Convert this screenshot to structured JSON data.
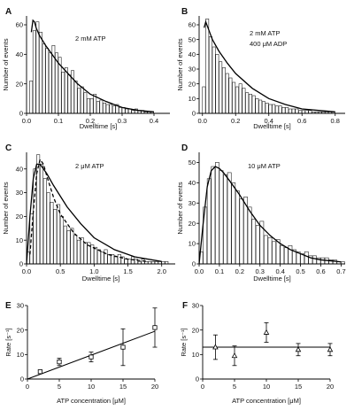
{
  "chart_data": [
    {
      "panel": "A",
      "type": "bar",
      "annotations": [
        "2 mM ATP"
      ],
      "xlabel": "Dwelltime [s]",
      "ylabel": "Number of events",
      "xlim": [
        0,
        0.45
      ],
      "ylim": [
        0,
        66
      ],
      "xticks": [
        "0.0",
        "0.1",
        "0.2",
        "0.3",
        "0.4"
      ],
      "yticks": [
        "0",
        "20",
        "40",
        "60"
      ],
      "bins": {
        "start": 0.01,
        "width": 0.01,
        "values": [
          22,
          56,
          62,
          55,
          47,
          44,
          41,
          46,
          41,
          38,
          28,
          31,
          26,
          29,
          22,
          17,
          18,
          14,
          10,
          10,
          13,
          8,
          9,
          7,
          6,
          6,
          5,
          6,
          4,
          4,
          3,
          3,
          2,
          3,
          2,
          2,
          1,
          1,
          1
        ]
      },
      "fit": [
        {
          "style": "solid",
          "x": [
            0.015,
            0.02,
            0.025,
            0.03,
            0.04,
            0.06,
            0.08,
            0.1,
            0.13,
            0.16,
            0.2,
            0.25,
            0.3,
            0.35,
            0.4
          ],
          "y": [
            55,
            63,
            62,
            58,
            53,
            46,
            40,
            34,
            27,
            20,
            13,
            8,
            4,
            2,
            1
          ]
        }
      ]
    },
    {
      "panel": "B",
      "type": "bar",
      "annotations": [
        "2 mM ATP",
        "400 μM ADP"
      ],
      "xlabel": "Dwelltime [s]",
      "ylabel": "Number of events",
      "xlim": [
        -0.02,
        0.86
      ],
      "ylim": [
        0,
        66
      ],
      "xticks": [
        "0.0",
        "0.2",
        "0.4",
        "0.6",
        "0.8"
      ],
      "yticks": [
        "0",
        "10",
        "20",
        "30",
        "40",
        "50",
        "60"
      ],
      "bins": {
        "start": 0.0,
        "width": 0.02,
        "values": [
          18,
          64,
          52,
          45,
          40,
          35,
          31,
          27,
          24,
          21,
          18,
          20,
          17,
          14,
          13,
          12,
          10,
          9,
          8,
          7,
          6,
          6,
          5,
          5,
          4,
          4,
          3,
          3,
          3,
          2,
          2,
          2,
          2,
          1,
          1,
          1,
          1,
          1,
          1,
          1
        ]
      },
      "fit": [
        {
          "style": "solid",
          "x": [
            0.01,
            0.02,
            0.04,
            0.06,
            0.1,
            0.15,
            0.2,
            0.3,
            0.4,
            0.5,
            0.6,
            0.7,
            0.8
          ],
          "y": [
            58,
            62,
            56,
            50,
            42,
            34,
            27,
            17,
            10,
            6,
            3,
            2,
            1
          ]
        }
      ]
    },
    {
      "panel": "C",
      "type": "bar",
      "annotations": [
        "2 μM ATP"
      ],
      "xlabel": "Dwelltime [s]",
      "ylabel": "Number of events",
      "xlim": [
        0,
        2.2
      ],
      "ylim": [
        0,
        47
      ],
      "xticks": [
        "0.0",
        "0.5",
        "1.0",
        "1.5",
        "2.0"
      ],
      "yticks": [
        "0",
        "10",
        "20",
        "30",
        "40"
      ],
      "bins": {
        "start": 0.0,
        "width": 0.05,
        "values": [
          5,
          21,
          40,
          46,
          42,
          36,
          30,
          26,
          23,
          25,
          20,
          16,
          14,
          15,
          12,
          10,
          11,
          9,
          9,
          8,
          7,
          6,
          5,
          6,
          4,
          4,
          3,
          4,
          3,
          2,
          2,
          3,
          2,
          1,
          2,
          1,
          1,
          1,
          1,
          1,
          1,
          1
        ]
      },
      "fit": [
        {
          "style": "solid",
          "x": [
            0.0,
            0.05,
            0.1,
            0.15,
            0.2,
            0.3,
            0.4,
            0.6,
            0.8,
            1.0,
            1.3,
            1.6,
            2.0
          ],
          "y": [
            0,
            20,
            36,
            42,
            42,
            38,
            33,
            24,
            17,
            11,
            6,
            3,
            1
          ]
        },
        {
          "style": "dashed",
          "x": [
            0.05,
            0.1,
            0.15,
            0.2,
            0.25,
            0.3,
            0.4,
            0.5,
            0.7,
            0.9,
            1.2,
            1.5,
            1.8
          ],
          "y": [
            4,
            22,
            38,
            44,
            42,
            37,
            28,
            21,
            13,
            8,
            4,
            2,
            1
          ]
        }
      ]
    },
    {
      "panel": "D",
      "type": "bar",
      "annotations": [
        "10 μM ATP"
      ],
      "xlabel": "Dwelltime [s]",
      "ylabel": "Number of events",
      "xlim": [
        0,
        0.72
      ],
      "ylim": [
        0,
        55
      ],
      "xticks": [
        "0.0",
        "0.1",
        "0.2",
        "0.3",
        "0.4",
        "0.5",
        "0.6",
        "0.7"
      ],
      "yticks": [
        "0",
        "10",
        "20",
        "30",
        "40",
        "50"
      ],
      "bins": {
        "start": 0.0,
        "width": 0.02,
        "values": [
          6,
          28,
          42,
          48,
          50,
          46,
          44,
          45,
          40,
          36,
          32,
          33,
          28,
          22,
          19,
          21,
          14,
          13,
          11,
          12,
          9,
          8,
          9,
          7,
          6,
          5,
          6,
          4,
          4,
          3,
          3,
          3,
          2,
          2,
          1,
          1
        ]
      },
      "fit": [
        {
          "style": "solid",
          "x": [
            0.0,
            0.02,
            0.04,
            0.06,
            0.08,
            0.1,
            0.12,
            0.15,
            0.2,
            0.25,
            0.3,
            0.35,
            0.4,
            0.45,
            0.5,
            0.55,
            0.6,
            0.65,
            0.7
          ],
          "y": [
            0,
            20,
            38,
            46,
            48,
            47,
            45,
            41,
            34,
            26,
            19,
            14,
            10,
            7,
            5,
            3,
            2,
            1.5,
            1
          ]
        }
      ]
    },
    {
      "panel": "E",
      "type": "scatter",
      "xlabel": "ATP concentration [μM]",
      "ylabel": "Rate [s⁻¹]",
      "xlim": [
        0,
        20
      ],
      "ylim": [
        0,
        30
      ],
      "xticks": [
        "0",
        "5",
        "10",
        "15",
        "20"
      ],
      "yticks": [
        "0",
        "10",
        "20",
        "30"
      ],
      "points": [
        {
          "x": 2,
          "y": 3,
          "err": 0.6
        },
        {
          "x": 5,
          "y": 7,
          "err": 1.5
        },
        {
          "x": 10,
          "y": 9,
          "err": 2
        },
        {
          "x": 15,
          "y": 13,
          "err": 7.5
        },
        {
          "x": 20,
          "y": 21,
          "err": 8
        }
      ],
      "fit_line": {
        "x": [
          0,
          20
        ],
        "y": [
          0,
          19.5
        ]
      }
    },
    {
      "panel": "F",
      "type": "scatter",
      "xlabel": "ATP concentration [μM]",
      "ylabel": "Rate [s⁻¹]",
      "xlim": [
        0,
        20
      ],
      "ylim": [
        0,
        30
      ],
      "xticks": [
        "0",
        "5",
        "10",
        "15",
        "20"
      ],
      "yticks": [
        "0",
        "10",
        "20",
        "30"
      ],
      "points": [
        {
          "x": 2,
          "y": 13,
          "err": 5
        },
        {
          "x": 5,
          "y": 9.5,
          "err": 4
        },
        {
          "x": 10,
          "y": 19,
          "err": 4
        },
        {
          "x": 15,
          "y": 12,
          "err": 2.5
        },
        {
          "x": 20,
          "y": 12,
          "err": 2.5
        }
      ],
      "fit_line": {
        "x": [
          0,
          20
        ],
        "y": [
          13,
          13
        ]
      }
    }
  ]
}
